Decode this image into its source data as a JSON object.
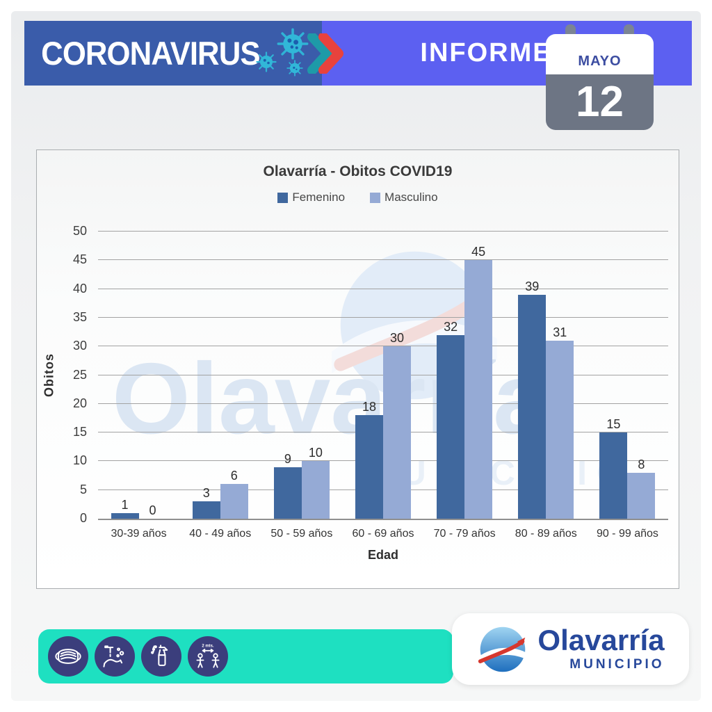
{
  "header": {
    "title": "CORONAVIRUS",
    "report_label": "INFORME",
    "calendar": {
      "month": "MAYO",
      "day": "12"
    },
    "colors": {
      "band_left": "#3a5caa",
      "band_right": "#5c60f1",
      "calendar_gray": "#6d7584"
    }
  },
  "chart_data": {
    "type": "bar",
    "title": "Olavarría - Obitos COVID19",
    "categories": [
      "30-39 años",
      "40 - 49 años",
      "50 - 59 años",
      "60 - 69 años",
      "70 - 79 años",
      "80 - 89 años",
      "90 - 99 años"
    ],
    "series": [
      {
        "name": "Femenino",
        "color": "#40689E",
        "values": [
          1,
          3,
          9,
          18,
          32,
          39,
          15
        ]
      },
      {
        "name": "Masculino",
        "color": "#95AAD5",
        "values": [
          0,
          6,
          10,
          30,
          45,
          31,
          8
        ]
      }
    ],
    "xlabel": "Edad",
    "ylabel": "Obitos",
    "ylim": [
      0,
      50
    ],
    "yticks": [
      0,
      5,
      10,
      15,
      20,
      25,
      30,
      35,
      40,
      45,
      50
    ],
    "grid": true,
    "legend_position": "top"
  },
  "watermark": {
    "line1": "Olavarría",
    "line2": "MUNICIPIO"
  },
  "footer": {
    "icons": [
      "face-mask",
      "hand-washing",
      "disinfectant-spray",
      "social-distance"
    ],
    "distance_label": "2 mts.",
    "teal_color": "#1ee0c1",
    "icon_circle_color": "#3b3e7c",
    "logo": {
      "name": "Olavarría",
      "subtitle": "MUNICIPIO",
      "text_color": "#27489b"
    }
  }
}
